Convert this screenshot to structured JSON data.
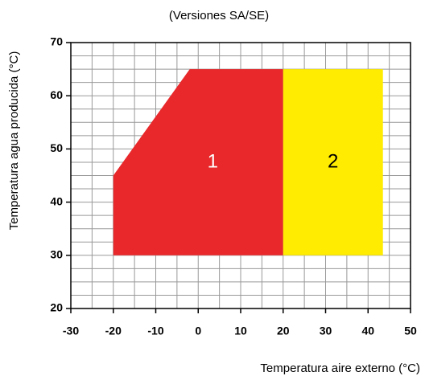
{
  "chart_data": {
    "type": "area",
    "title": "(Versiones SA/SE)",
    "xlabel": "Temperatura aire externo (°C)",
    "ylabel": "Temperatura agua producida (°C)",
    "xlim": [
      -30,
      50
    ],
    "ylim": [
      20,
      70
    ],
    "xticks": [
      -30,
      -20,
      -10,
      0,
      10,
      20,
      30,
      40,
      50
    ],
    "yticks": [
      20,
      30,
      40,
      50,
      60,
      70
    ],
    "xgrid": [
      -25,
      -20,
      -15,
      -10,
      -5,
      0,
      5,
      10,
      15,
      20,
      25,
      30,
      35,
      40,
      45
    ],
    "ygrid": [
      22.5,
      25,
      27.5,
      30,
      32.5,
      35,
      37.5,
      40,
      42.5,
      45,
      47.5,
      50,
      52.5,
      55,
      57.5,
      60,
      62.5,
      65,
      67.5
    ],
    "grid": true,
    "series": [
      {
        "name": "1",
        "color": "#e8282b",
        "x": [
          -20,
          -20,
          -2,
          20,
          20
        ],
        "values": [
          30,
          45,
          65,
          65,
          30
        ]
      },
      {
        "name": "2",
        "color": "#ffec00",
        "x": [
          20,
          20,
          43.5,
          43.5
        ],
        "values": [
          30,
          65,
          65,
          30
        ]
      }
    ]
  }
}
